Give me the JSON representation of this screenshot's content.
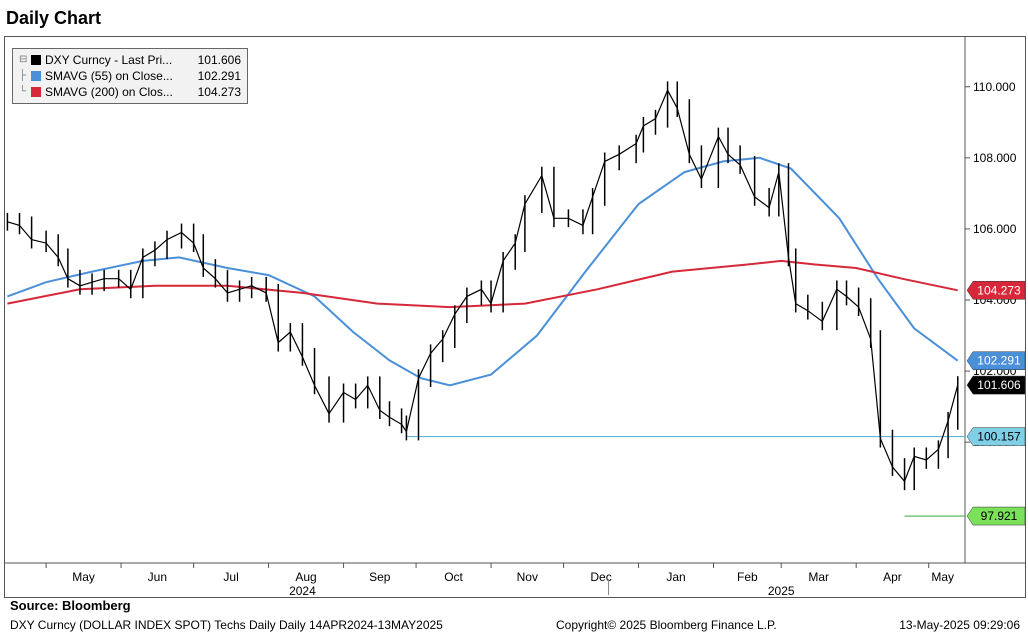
{
  "title": "Daily Chart",
  "legend": {
    "items": [
      {
        "name": "DXY Curncy - Last Pri...",
        "value": "101.606",
        "color": "#000000"
      },
      {
        "name": "SMAVG (55)  on Close...",
        "value": "102.291",
        "color": "#4a90d9"
      },
      {
        "name": "SMAVG (200)  on Clos...",
        "value": "104.273",
        "color": "#d62839"
      }
    ]
  },
  "footer": {
    "source": "Source:  Bloomberg",
    "description": "DXY Curncy (DOLLAR INDEX SPOT) Techs Daily  Daily 14APR2024-13MAY2025",
    "copyright": "Copyright© 2025 Bloomberg Finance L.P.",
    "timestamp": "13-May-2025 09:29:06"
  },
  "chart_data": {
    "type": "line",
    "title": "Daily Chart",
    "xlabel": "",
    "ylabel": "",
    "ylim": [
      96.6,
      111.4
    ],
    "y_ticks": [
      "110.000",
      "108.000",
      "106.000",
      "104.000",
      "102.000",
      "100.000"
    ],
    "y_tick_values": [
      110,
      108,
      106,
      104,
      102,
      100
    ],
    "x_month_labels": [
      "May",
      "Jun",
      "Jul",
      "Aug",
      "Sep",
      "Oct",
      "Nov",
      "Dec",
      "Jan",
      "Feb",
      "Mar",
      "Apr",
      "May"
    ],
    "x_month_dates": [
      "2024-05-01",
      "2024-06-01",
      "2024-07-01",
      "2024-08-01",
      "2024-09-01",
      "2024-10-01",
      "2024-11-01",
      "2024-12-01",
      "2025-01-01",
      "2025-02-01",
      "2025-03-01",
      "2025-04-01",
      "2025-05-01"
    ],
    "x_year_labels": [
      {
        "label": "2024",
        "date": "2024-08-15"
      },
      {
        "label": "2025",
        "date": "2025-03-01"
      }
    ],
    "x_range": [
      "2024-04-14",
      "2025-05-16"
    ],
    "series": [
      {
        "name": "DXY Curncy - Last Pri...",
        "color": "#000000",
        "style": "ohlc",
        "points": [
          [
            "2024-04-15",
            106.2
          ],
          [
            "2024-04-20",
            106.1
          ],
          [
            "2024-04-25",
            105.7
          ],
          [
            "2024-05-01",
            105.6
          ],
          [
            "2024-05-06",
            105.2
          ],
          [
            "2024-05-10",
            104.6
          ],
          [
            "2024-05-15",
            104.4
          ],
          [
            "2024-05-20",
            104.5
          ],
          [
            "2024-05-25",
            104.6
          ],
          [
            "2024-05-31",
            104.6
          ],
          [
            "2024-06-05",
            104.3
          ],
          [
            "2024-06-10",
            105.2
          ],
          [
            "2024-06-15",
            105.4
          ],
          [
            "2024-06-20",
            105.7
          ],
          [
            "2024-06-26",
            105.9
          ],
          [
            "2024-07-01",
            105.6
          ],
          [
            "2024-07-05",
            104.9
          ],
          [
            "2024-07-10",
            104.6
          ],
          [
            "2024-07-15",
            104.2
          ],
          [
            "2024-07-20",
            104.3
          ],
          [
            "2024-07-25",
            104.4
          ],
          [
            "2024-07-31",
            104.2
          ],
          [
            "2024-08-05",
            102.8
          ],
          [
            "2024-08-10",
            103.1
          ],
          [
            "2024-08-15",
            102.4
          ],
          [
            "2024-08-20",
            101.6
          ],
          [
            "2024-08-26",
            100.8
          ],
          [
            "2024-09-01",
            101.4
          ],
          [
            "2024-09-06",
            101.2
          ],
          [
            "2024-09-11",
            101.6
          ],
          [
            "2024-09-16",
            100.9
          ],
          [
            "2024-09-20",
            100.7
          ],
          [
            "2024-09-25",
            100.5
          ],
          [
            "2024-09-27",
            100.3
          ],
          [
            "2024-10-02",
            101.8
          ],
          [
            "2024-10-07",
            102.5
          ],
          [
            "2024-10-12",
            102.9
          ],
          [
            "2024-10-17",
            103.6
          ],
          [
            "2024-10-22",
            104.1
          ],
          [
            "2024-10-28",
            104.3
          ],
          [
            "2024-11-01",
            103.9
          ],
          [
            "2024-11-06",
            105.1
          ],
          [
            "2024-11-11",
            105.6
          ],
          [
            "2024-11-15",
            106.7
          ],
          [
            "2024-11-22",
            107.5
          ],
          [
            "2024-11-27",
            106.3
          ],
          [
            "2024-12-03",
            106.3
          ],
          [
            "2024-12-09",
            106.1
          ],
          [
            "2024-12-13",
            106.9
          ],
          [
            "2024-12-18",
            107.9
          ],
          [
            "2024-12-24",
            108.1
          ],
          [
            "2024-12-31",
            108.4
          ],
          [
            "2025-01-03",
            108.9
          ],
          [
            "2025-01-08",
            109.1
          ],
          [
            "2025-01-13",
            109.9
          ],
          [
            "2025-01-17",
            109.4
          ],
          [
            "2025-01-22",
            108.1
          ],
          [
            "2025-01-27",
            107.4
          ],
          [
            "2025-02-03",
            108.6
          ],
          [
            "2025-02-07",
            108.1
          ],
          [
            "2025-02-12",
            107.8
          ],
          [
            "2025-02-18",
            106.9
          ],
          [
            "2025-02-24",
            106.6
          ],
          [
            "2025-02-28",
            107.6
          ],
          [
            "2025-03-04",
            105.2
          ],
          [
            "2025-03-07",
            103.9
          ],
          [
            "2025-03-12",
            103.7
          ],
          [
            "2025-03-18",
            103.4
          ],
          [
            "2025-03-24",
            104.3
          ],
          [
            "2025-03-28",
            104.1
          ],
          [
            "2025-04-02",
            103.8
          ],
          [
            "2025-04-07",
            102.9
          ],
          [
            "2025-04-11",
            100.1
          ],
          [
            "2025-04-16",
            99.3
          ],
          [
            "2025-04-21",
            98.9
          ],
          [
            "2025-04-25",
            99.6
          ],
          [
            "2025-04-30",
            99.5
          ],
          [
            "2025-05-05",
            99.8
          ],
          [
            "2025-05-09",
            100.6
          ],
          [
            "2025-05-13",
            101.606
          ]
        ]
      },
      {
        "name": "SMAVG (55)  on Close...",
        "color": "#4a90d9",
        "style": "line",
        "points": [
          [
            "2024-04-15",
            104.1
          ],
          [
            "2024-05-01",
            104.5
          ],
          [
            "2024-05-20",
            104.8
          ],
          [
            "2024-06-10",
            105.1
          ],
          [
            "2024-06-25",
            105.2
          ],
          [
            "2024-07-15",
            104.9
          ],
          [
            "2024-08-01",
            104.7
          ],
          [
            "2024-08-20",
            104.1
          ],
          [
            "2024-09-05",
            103.1
          ],
          [
            "2024-09-20",
            102.3
          ],
          [
            "2024-10-03",
            101.8
          ],
          [
            "2024-10-15",
            101.6
          ],
          [
            "2024-11-01",
            101.9
          ],
          [
            "2024-11-20",
            103.0
          ],
          [
            "2024-12-10",
            104.8
          ],
          [
            "2025-01-01",
            106.7
          ],
          [
            "2025-01-20",
            107.6
          ],
          [
            "2025-02-05",
            107.9
          ],
          [
            "2025-02-20",
            108.0
          ],
          [
            "2025-03-05",
            107.7
          ],
          [
            "2025-03-25",
            106.3
          ],
          [
            "2025-04-10",
            104.6
          ],
          [
            "2025-04-25",
            103.2
          ],
          [
            "2025-05-13",
            102.291
          ]
        ]
      },
      {
        "name": "SMAVG (200)  on Clos...",
        "color": "#d62839",
        "style": "line",
        "points": [
          [
            "2024-04-15",
            103.9
          ],
          [
            "2024-05-15",
            104.3
          ],
          [
            "2024-06-15",
            104.4
          ],
          [
            "2024-07-15",
            104.4
          ],
          [
            "2024-08-15",
            104.2
          ],
          [
            "2024-09-15",
            103.9
          ],
          [
            "2024-10-15",
            103.8
          ],
          [
            "2024-11-15",
            103.9
          ],
          [
            "2024-12-15",
            104.3
          ],
          [
            "2025-01-15",
            104.8
          ],
          [
            "2025-02-15",
            105.0
          ],
          [
            "2025-03-01",
            105.1
          ],
          [
            "2025-03-15",
            105.0
          ],
          [
            "2025-04-01",
            104.9
          ],
          [
            "2025-04-20",
            104.6
          ],
          [
            "2025-05-13",
            104.273
          ]
        ]
      }
    ],
    "reference_lines": [
      {
        "value": 100.157,
        "from": "2024-09-27",
        "color": "#5bb8d6"
      },
      {
        "value": 97.921,
        "from": "2025-04-21",
        "color": "#4caf50"
      }
    ],
    "price_tags": [
      {
        "label": "104.273",
        "value": 104.273,
        "bg": "#d62839",
        "fg": "#ffffff"
      },
      {
        "label": "102.291",
        "value": 102.291,
        "bg": "#4a90d9",
        "fg": "#ffffff"
      },
      {
        "label": "101.606",
        "value": 101.606,
        "bg": "#000000",
        "fg": "#ffffff"
      },
      {
        "label": "100.157",
        "value": 100.157,
        "bg": "#7fd0e6",
        "fg": "#000000"
      },
      {
        "label": "97.921",
        "value": 97.921,
        "bg": "#7be05a",
        "fg": "#000000"
      }
    ]
  }
}
